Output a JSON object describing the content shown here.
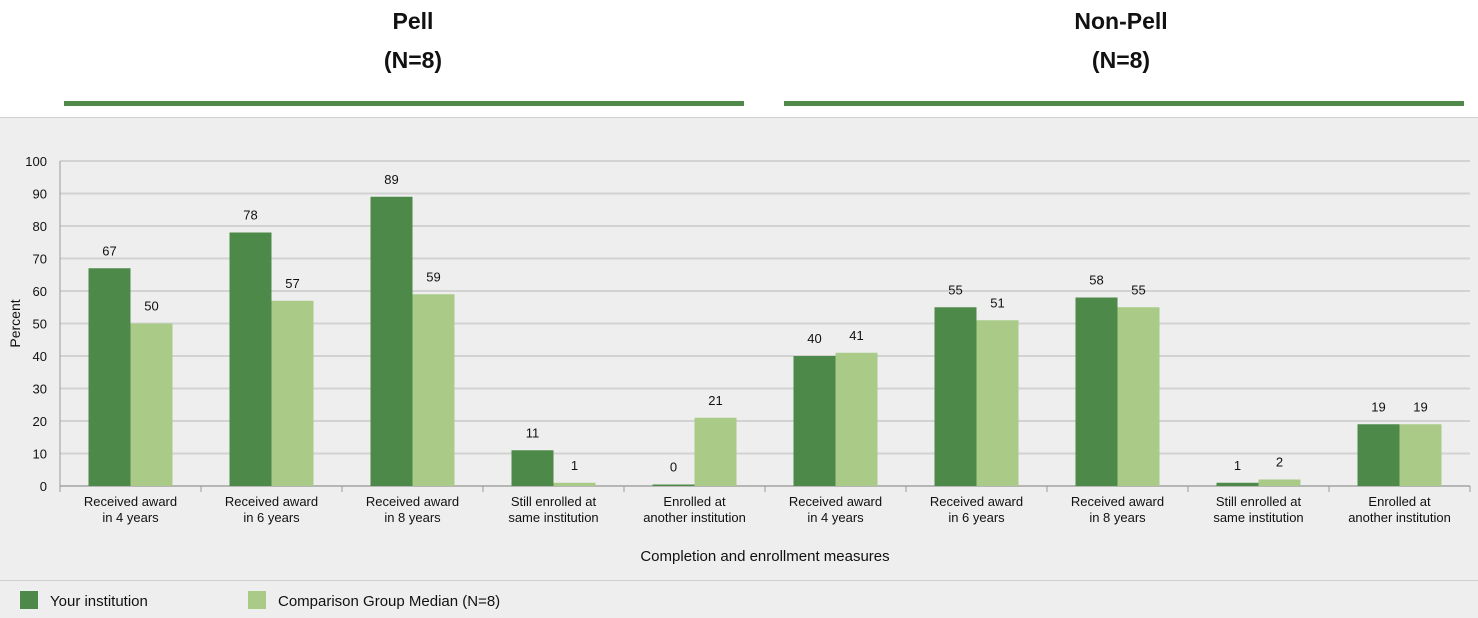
{
  "groups": [
    {
      "title": "Pell",
      "n": "(N=8)"
    },
    {
      "title": "Non-Pell",
      "n": "(N=8)"
    }
  ],
  "colors": {
    "your_institution": "#4d8a4a",
    "comparison": "#a9cb87",
    "rule": "#4f8a4b"
  },
  "legend": {
    "your_institution": "Your institution",
    "comparison": "Comparison Group Median (N=8)"
  },
  "chart_data": {
    "type": "bar",
    "xlabel": "Completion and enrollment measures",
    "ylabel": "Percent",
    "ylim": [
      0,
      100
    ],
    "yticks": [
      0,
      10,
      20,
      30,
      40,
      50,
      60,
      70,
      80,
      90,
      100
    ],
    "grid": true,
    "legend_placement": "bottom",
    "categories": [
      [
        "Received award",
        "in 4 years"
      ],
      [
        "Received award",
        "in 6 years"
      ],
      [
        "Received award",
        "in 8 years"
      ],
      [
        "Still enrolled at",
        "same institution"
      ],
      [
        "Enrolled at",
        "another institution"
      ],
      [
        "Received award",
        "in 4 years"
      ],
      [
        "Received award",
        "in 6 years"
      ],
      [
        "Received award",
        "in 8 years"
      ],
      [
        "Still enrolled at",
        "same institution"
      ],
      [
        "Enrolled at",
        "another institution"
      ]
    ],
    "series": [
      {
        "name": "Your institution",
        "values": [
          67,
          78,
          89,
          11,
          0,
          40,
          55,
          58,
          1,
          19
        ]
      },
      {
        "name": "Comparison Group Median (N=8)",
        "values": [
          50,
          57,
          59,
          1,
          21,
          41,
          51,
          55,
          2,
          19
        ]
      }
    ]
  }
}
